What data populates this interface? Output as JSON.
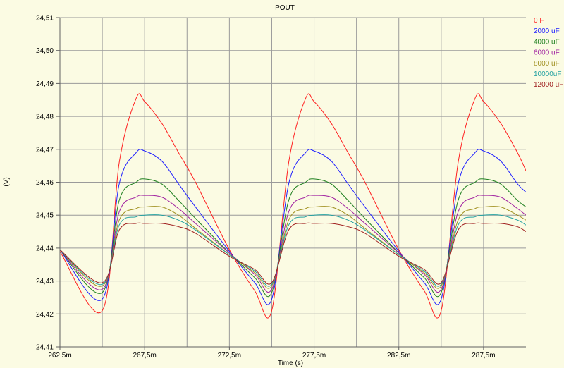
{
  "chart_data": {
    "type": "line",
    "title": "POUT",
    "xlabel": "Time (s)",
    "ylabel": "(V)",
    "xlim": [
      0.2625,
      0.29
    ],
    "ylim": [
      24.41,
      24.51
    ],
    "x_ticks": [
      {
        "value": 0.2625,
        "label": "262,5m"
      },
      {
        "value": 0.2675,
        "label": "267,5m"
      },
      {
        "value": 0.2725,
        "label": "272,5m"
      },
      {
        "value": 0.2775,
        "label": "277,5m"
      },
      {
        "value": 0.2825,
        "label": "282,5m"
      },
      {
        "value": 0.2875,
        "label": "287,5m"
      }
    ],
    "x_grid": [
      0.2625,
      0.265,
      0.2675,
      0.27,
      0.2725,
      0.275,
      0.2775,
      0.28,
      0.2825,
      0.285,
      0.2875
    ],
    "y_ticks": [
      {
        "value": 24.41,
        "label": "24,41"
      },
      {
        "value": 24.42,
        "label": "24,42"
      },
      {
        "value": 24.43,
        "label": "24,43"
      },
      {
        "value": 24.44,
        "label": "24,44"
      },
      {
        "value": 24.45,
        "label": "24,45"
      },
      {
        "value": 24.46,
        "label": "24,46"
      },
      {
        "value": 24.47,
        "label": "24,47"
      },
      {
        "value": 24.48,
        "label": "24,48"
      },
      {
        "value": 24.49,
        "label": "24,49"
      },
      {
        "value": 24.5,
        "label": "24,50"
      },
      {
        "value": 24.51,
        "label": "24,51"
      }
    ],
    "grid": true,
    "legend_position": "top-right",
    "series": [
      {
        "name": "0 F",
        "color": "#ff2020",
        "x": [
          0.2625,
          0.265,
          0.266,
          0.267,
          0.2675,
          0.2685,
          0.2695,
          0.2705,
          0.2725,
          0.274,
          0.275,
          0.276,
          0.277,
          0.2775,
          0.2785,
          0.2795,
          0.2805,
          0.2825,
          0.284,
          0.285,
          0.286,
          0.287,
          0.2875,
          0.2885,
          0.2895,
          0.29
        ],
        "y": [
          24.439,
          24.421,
          24.466,
          24.4855,
          24.4845,
          24.478,
          24.469,
          24.46,
          24.4395,
          24.427,
          24.421,
          24.466,
          24.4855,
          24.4845,
          24.478,
          24.469,
          24.46,
          24.4395,
          24.427,
          24.421,
          24.466,
          24.4855,
          24.4845,
          24.478,
          24.469,
          24.4635
        ]
      },
      {
        "name": "2000 uF",
        "color": "#2020ff",
        "x": [
          0.2625,
          0.265,
          0.266,
          0.267,
          0.2675,
          0.2685,
          0.2695,
          0.2705,
          0.2725,
          0.274,
          0.275,
          0.276,
          0.277,
          0.2775,
          0.2785,
          0.2795,
          0.2805,
          0.2825,
          0.284,
          0.285,
          0.286,
          0.287,
          0.2875,
          0.2885,
          0.2895,
          0.29
        ],
        "y": [
          24.4395,
          24.4245,
          24.4595,
          24.469,
          24.4695,
          24.4665,
          24.4595,
          24.4525,
          24.439,
          24.4295,
          24.4245,
          24.4595,
          24.469,
          24.4695,
          24.4665,
          24.4595,
          24.4525,
          24.439,
          24.4295,
          24.4245,
          24.4595,
          24.469,
          24.4695,
          24.4665,
          24.4595,
          24.457
        ]
      },
      {
        "name": "4000 uF",
        "color": "#208020",
        "x": [
          0.2625,
          0.265,
          0.266,
          0.267,
          0.2675,
          0.2685,
          0.2695,
          0.2705,
          0.2725,
          0.274,
          0.275,
          0.276,
          0.277,
          0.2775,
          0.2785,
          0.2795,
          0.2805,
          0.2825,
          0.284,
          0.285,
          0.286,
          0.287,
          0.2875,
          0.2885,
          0.2895,
          0.29
        ],
        "y": [
          24.4395,
          24.4265,
          24.4545,
          24.46,
          24.461,
          24.4595,
          24.4545,
          24.449,
          24.4385,
          24.431,
          24.4265,
          24.4545,
          24.46,
          24.461,
          24.4595,
          24.4545,
          24.449,
          24.4385,
          24.431,
          24.4265,
          24.4545,
          24.46,
          24.461,
          24.4595,
          24.4545,
          24.4525
        ]
      },
      {
        "name": "6000 uF",
        "color": "#a020a0",
        "x": [
          0.2625,
          0.265,
          0.266,
          0.267,
          0.2675,
          0.2685,
          0.2695,
          0.2705,
          0.2725,
          0.274,
          0.275,
          0.276,
          0.277,
          0.2775,
          0.2785,
          0.2795,
          0.2805,
          0.2825,
          0.284,
          0.285,
          0.286,
          0.287,
          0.2875,
          0.2885,
          0.2895,
          0.29
        ],
        "y": [
          24.4395,
          24.4275,
          24.451,
          24.4555,
          24.456,
          24.4555,
          24.452,
          24.4475,
          24.4385,
          24.432,
          24.4275,
          24.451,
          24.4555,
          24.456,
          24.4555,
          24.452,
          24.4475,
          24.4385,
          24.432,
          24.4275,
          24.451,
          24.4555,
          24.456,
          24.4555,
          24.452,
          24.45
        ]
      },
      {
        "name": "8000 uF",
        "color": "#a09020",
        "x": [
          0.2625,
          0.265,
          0.266,
          0.267,
          0.2675,
          0.2685,
          0.2695,
          0.2705,
          0.2725,
          0.274,
          0.275,
          0.276,
          0.277,
          0.2775,
          0.2785,
          0.2795,
          0.2805,
          0.2825,
          0.284,
          0.285,
          0.286,
          0.287,
          0.2875,
          0.2885,
          0.2895,
          0.29
        ],
        "y": [
          24.4395,
          24.4285,
          24.4485,
          24.452,
          24.4525,
          24.4525,
          24.45,
          24.446,
          24.438,
          24.4325,
          24.4285,
          24.4485,
          24.452,
          24.4525,
          24.4525,
          24.45,
          24.446,
          24.438,
          24.4325,
          24.4285,
          24.4485,
          24.452,
          24.4525,
          24.4525,
          24.45,
          24.4485
        ]
      },
      {
        "name": "10000uF",
        "color": "#20a0a0",
        "x": [
          0.2625,
          0.265,
          0.266,
          0.267,
          0.2675,
          0.2685,
          0.2695,
          0.2705,
          0.2725,
          0.274,
          0.275,
          0.276,
          0.277,
          0.2775,
          0.2785,
          0.2795,
          0.2805,
          0.2825,
          0.284,
          0.285,
          0.286,
          0.287,
          0.2875,
          0.2885,
          0.2895,
          0.29
        ],
        "y": [
          24.4395,
          24.429,
          24.447,
          24.4495,
          24.45,
          24.45,
          24.4485,
          24.4455,
          24.438,
          24.433,
          24.429,
          24.447,
          24.4495,
          24.45,
          24.45,
          24.4485,
          24.4455,
          24.438,
          24.433,
          24.429,
          24.447,
          24.4495,
          24.45,
          24.45,
          24.4485,
          24.447
        ]
      },
      {
        "name": "12000 uF",
        "color": "#a02020",
        "x": [
          0.2625,
          0.265,
          0.266,
          0.267,
          0.2675,
          0.2685,
          0.2695,
          0.2705,
          0.2725,
          0.274,
          0.275,
          0.276,
          0.277,
          0.2775,
          0.2785,
          0.2795,
          0.2805,
          0.2825,
          0.284,
          0.285,
          0.286,
          0.287,
          0.2875,
          0.2885,
          0.2895,
          0.29
        ],
        "y": [
          24.4395,
          24.4295,
          24.4455,
          24.4475,
          24.4475,
          24.4475,
          24.4465,
          24.4445,
          24.4375,
          24.4335,
          24.4295,
          24.4455,
          24.4475,
          24.4475,
          24.4475,
          24.4465,
          24.4445,
          24.4375,
          24.4335,
          24.4295,
          24.4455,
          24.4475,
          24.4475,
          24.4475,
          24.4465,
          24.445
        ]
      }
    ]
  }
}
